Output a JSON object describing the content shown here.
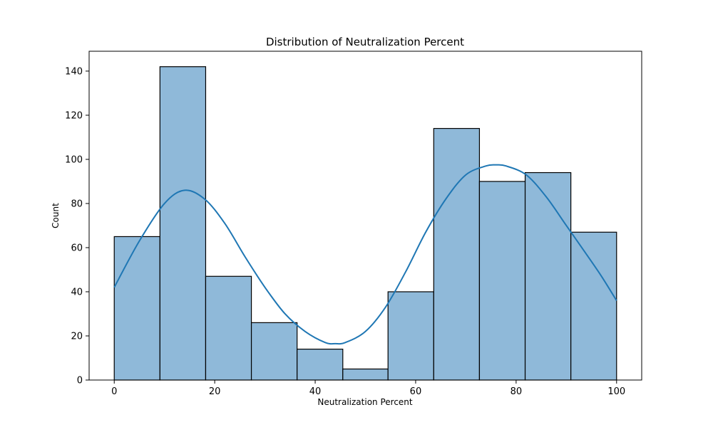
{
  "chart_data": {
    "type": "bar",
    "title": "Distribution of Neutralization Percent",
    "xlabel": "Neutralization Percent",
    "ylabel": "Count",
    "xlim": [
      -5,
      105
    ],
    "ylim": [
      0,
      149
    ],
    "xticks": [
      0,
      20,
      40,
      60,
      80,
      100
    ],
    "yticks": [
      0,
      20,
      40,
      60,
      80,
      100,
      120,
      140
    ],
    "bins": [
      {
        "x0": 0.0,
        "x1": 9.1,
        "count": 65
      },
      {
        "x0": 9.1,
        "x1": 18.2,
        "count": 142
      },
      {
        "x0": 18.2,
        "x1": 27.3,
        "count": 47
      },
      {
        "x0": 27.3,
        "x1": 36.4,
        "count": 26
      },
      {
        "x0": 36.4,
        "x1": 45.5,
        "count": 14
      },
      {
        "x0": 45.5,
        "x1": 54.5,
        "count": 5
      },
      {
        "x0": 54.5,
        "x1": 63.6,
        "count": 40
      },
      {
        "x0": 63.6,
        "x1": 72.7,
        "count": 114
      },
      {
        "x0": 72.7,
        "x1": 81.8,
        "count": 90
      },
      {
        "x0": 81.8,
        "x1": 90.9,
        "count": 94
      },
      {
        "x0": 90.9,
        "x1": 100.0,
        "count": 67
      }
    ],
    "kde": {
      "x": [
        0,
        5,
        10,
        14,
        18,
        22,
        26,
        30,
        34,
        38,
        42,
        44,
        46,
        50,
        54,
        58,
        62,
        66,
        70,
        74,
        76,
        78,
        82,
        86,
        90,
        94,
        97,
        100
      ],
      "y": [
        42,
        63,
        80,
        86,
        82,
        71,
        56,
        42,
        30,
        22,
        17,
        16.5,
        17,
        22,
        33,
        49,
        67,
        82,
        93,
        97,
        97.5,
        97,
        93,
        83,
        70,
        57,
        47,
        36
      ]
    },
    "bar_color": "#8fb9d9",
    "bar_edge_color": "#000000",
    "kde_color": "#1f77b4",
    "grid": false,
    "legend": "none"
  }
}
